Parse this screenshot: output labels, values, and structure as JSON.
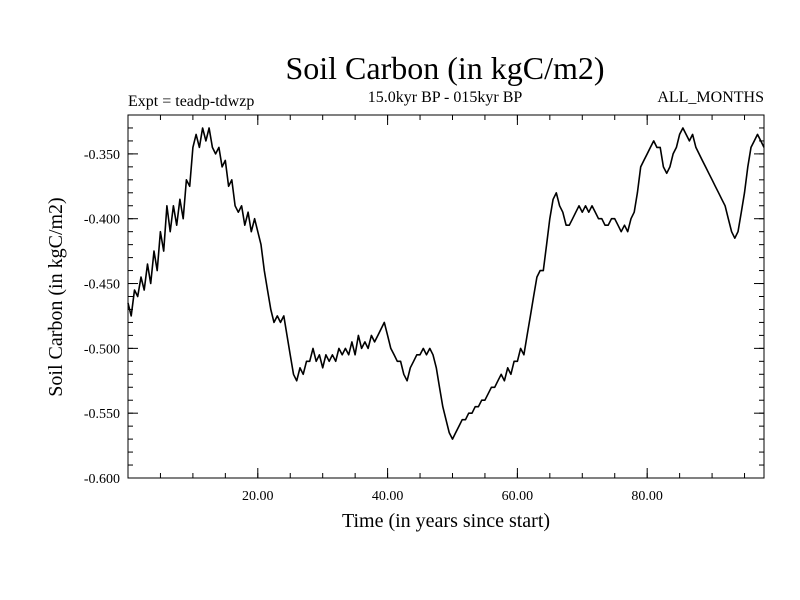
{
  "chart_data": {
    "type": "line",
    "title": "Soil Carbon (in kgC/m2)",
    "subtitle_left": "Expt = teadp-tdwzp",
    "subtitle_center": "15.0kyr BP - 015kyr BP",
    "subtitle_right": "ALL_MONTHS",
    "xlabel": "Time (in years since start)",
    "ylabel": "Soil Carbon (in kgC/m2)",
    "xlim": [
      0,
      98
    ],
    "ylim": [
      -0.6,
      -0.32
    ],
    "x_ticks": [
      20,
      40,
      60,
      80
    ],
    "x_tick_labels": [
      "20.00",
      "40.00",
      "60.00",
      "80.00"
    ],
    "y_ticks": [
      -0.6,
      -0.55,
      -0.5,
      -0.45,
      -0.4,
      -0.35
    ],
    "y_tick_labels": [
      "-0.600",
      "-0.550",
      "-0.500",
      "-0.450",
      "-0.400",
      "-0.350"
    ],
    "grid": false,
    "series": [
      {
        "name": "Soil Carbon",
        "color": "#000000",
        "points": [
          [
            0,
            -0.465
          ],
          [
            0.5,
            -0.475
          ],
          [
            1,
            -0.455
          ],
          [
            1.5,
            -0.46
          ],
          [
            2,
            -0.445
          ],
          [
            2.5,
            -0.455
          ],
          [
            3,
            -0.435
          ],
          [
            3.5,
            -0.45
          ],
          [
            4,
            -0.425
          ],
          [
            4.5,
            -0.44
          ],
          [
            5,
            -0.41
          ],
          [
            5.5,
            -0.425
          ],
          [
            6,
            -0.39
          ],
          [
            6.5,
            -0.41
          ],
          [
            7,
            -0.39
          ],
          [
            7.5,
            -0.405
          ],
          [
            8,
            -0.385
          ],
          [
            8.5,
            -0.4
          ],
          [
            9,
            -0.37
          ],
          [
            9.5,
            -0.375
          ],
          [
            10,
            -0.345
          ],
          [
            10.5,
            -0.335
          ],
          [
            11,
            -0.345
          ],
          [
            11.5,
            -0.33
          ],
          [
            12,
            -0.34
          ],
          [
            12.5,
            -0.33
          ],
          [
            13,
            -0.345
          ],
          [
            13.5,
            -0.35
          ],
          [
            14,
            -0.345
          ],
          [
            14.5,
            -0.36
          ],
          [
            15,
            -0.355
          ],
          [
            15.5,
            -0.375
          ],
          [
            16,
            -0.37
          ],
          [
            16.5,
            -0.39
          ],
          [
            17,
            -0.395
          ],
          [
            17.5,
            -0.39
          ],
          [
            18,
            -0.405
          ],
          [
            18.5,
            -0.395
          ],
          [
            19,
            -0.41
          ],
          [
            19.5,
            -0.4
          ],
          [
            20,
            -0.41
          ],
          [
            20.5,
            -0.42
          ],
          [
            21,
            -0.44
          ],
          [
            21.5,
            -0.455
          ],
          [
            22,
            -0.47
          ],
          [
            22.5,
            -0.48
          ],
          [
            23,
            -0.475
          ],
          [
            23.5,
            -0.48
          ],
          [
            24,
            -0.475
          ],
          [
            24.5,
            -0.49
          ],
          [
            25,
            -0.505
          ],
          [
            25.5,
            -0.52
          ],
          [
            26,
            -0.525
          ],
          [
            26.5,
            -0.515
          ],
          [
            27,
            -0.52
          ],
          [
            27.5,
            -0.51
          ],
          [
            28,
            -0.51
          ],
          [
            28.5,
            -0.5
          ],
          [
            29,
            -0.51
          ],
          [
            29.5,
            -0.505
          ],
          [
            30,
            -0.515
          ],
          [
            30.5,
            -0.505
          ],
          [
            31,
            -0.51
          ],
          [
            31.5,
            -0.505
          ],
          [
            32,
            -0.51
          ],
          [
            32.5,
            -0.5
          ],
          [
            33,
            -0.505
          ],
          [
            33.5,
            -0.5
          ],
          [
            34,
            -0.505
          ],
          [
            34.5,
            -0.495
          ],
          [
            35,
            -0.505
          ],
          [
            35.5,
            -0.49
          ],
          [
            36,
            -0.5
          ],
          [
            36.5,
            -0.495
          ],
          [
            37,
            -0.5
          ],
          [
            37.5,
            -0.49
          ],
          [
            38,
            -0.495
          ],
          [
            38.5,
            -0.49
          ],
          [
            39,
            -0.485
          ],
          [
            39.5,
            -0.48
          ],
          [
            40,
            -0.49
          ],
          [
            40.5,
            -0.5
          ],
          [
            41,
            -0.505
          ],
          [
            41.5,
            -0.51
          ],
          [
            42,
            -0.51
          ],
          [
            42.5,
            -0.52
          ],
          [
            43,
            -0.525
          ],
          [
            43.5,
            -0.515
          ],
          [
            44,
            -0.51
          ],
          [
            44.5,
            -0.505
          ],
          [
            45,
            -0.505
          ],
          [
            45.5,
            -0.5
          ],
          [
            46,
            -0.505
          ],
          [
            46.5,
            -0.5
          ],
          [
            47,
            -0.505
          ],
          [
            47.5,
            -0.515
          ],
          [
            48,
            -0.53
          ],
          [
            48.5,
            -0.545
          ],
          [
            49,
            -0.555
          ],
          [
            49.5,
            -0.565
          ],
          [
            50,
            -0.57
          ],
          [
            50.5,
            -0.565
          ],
          [
            51,
            -0.56
          ],
          [
            51.5,
            -0.555
          ],
          [
            52,
            -0.555
          ],
          [
            52.5,
            -0.55
          ],
          [
            53,
            -0.55
          ],
          [
            53.5,
            -0.545
          ],
          [
            54,
            -0.545
          ],
          [
            54.5,
            -0.54
          ],
          [
            55,
            -0.54
          ],
          [
            55.5,
            -0.535
          ],
          [
            56,
            -0.53
          ],
          [
            56.5,
            -0.53
          ],
          [
            57,
            -0.525
          ],
          [
            57.5,
            -0.52
          ],
          [
            58,
            -0.525
          ],
          [
            58.5,
            -0.515
          ],
          [
            59,
            -0.52
          ],
          [
            59.5,
            -0.51
          ],
          [
            60,
            -0.51
          ],
          [
            60.5,
            -0.5
          ],
          [
            61,
            -0.505
          ],
          [
            61.5,
            -0.49
          ],
          [
            62,
            -0.475
          ],
          [
            62.5,
            -0.46
          ],
          [
            63,
            -0.445
          ],
          [
            63.5,
            -0.44
          ],
          [
            64,
            -0.44
          ],
          [
            64.5,
            -0.42
          ],
          [
            65,
            -0.4
          ],
          [
            65.5,
            -0.385
          ],
          [
            66,
            -0.38
          ],
          [
            66.5,
            -0.39
          ],
          [
            67,
            -0.395
          ],
          [
            67.5,
            -0.405
          ],
          [
            68,
            -0.405
          ],
          [
            68.5,
            -0.4
          ],
          [
            69,
            -0.395
          ],
          [
            69.5,
            -0.39
          ],
          [
            70,
            -0.395
          ],
          [
            70.5,
            -0.39
          ],
          [
            71,
            -0.395
          ],
          [
            71.5,
            -0.39
          ],
          [
            72,
            -0.395
          ],
          [
            72.5,
            -0.4
          ],
          [
            73,
            -0.4
          ],
          [
            73.5,
            -0.405
          ],
          [
            74,
            -0.405
          ],
          [
            74.5,
            -0.4
          ],
          [
            75,
            -0.4
          ],
          [
            75.5,
            -0.405
          ],
          [
            76,
            -0.41
          ],
          [
            76.5,
            -0.405
          ],
          [
            77,
            -0.41
          ],
          [
            77.5,
            -0.4
          ],
          [
            78,
            -0.395
          ],
          [
            78.5,
            -0.38
          ],
          [
            79,
            -0.36
          ],
          [
            79.5,
            -0.355
          ],
          [
            80,
            -0.35
          ],
          [
            80.5,
            -0.345
          ],
          [
            81,
            -0.34
          ],
          [
            81.5,
            -0.345
          ],
          [
            82,
            -0.345
          ],
          [
            82.5,
            -0.36
          ],
          [
            83,
            -0.365
          ],
          [
            83.5,
            -0.36
          ],
          [
            84,
            -0.35
          ],
          [
            84.5,
            -0.345
          ],
          [
            85,
            -0.335
          ],
          [
            85.5,
            -0.33
          ],
          [
            86,
            -0.335
          ],
          [
            86.5,
            -0.34
          ],
          [
            87,
            -0.335
          ],
          [
            87.5,
            -0.345
          ],
          [
            88,
            -0.35
          ],
          [
            88.5,
            -0.355
          ],
          [
            89,
            -0.36
          ],
          [
            89.5,
            -0.365
          ],
          [
            90,
            -0.37
          ],
          [
            90.5,
            -0.375
          ],
          [
            91,
            -0.38
          ],
          [
            91.5,
            -0.385
          ],
          [
            92,
            -0.39
          ],
          [
            92.5,
            -0.4
          ],
          [
            93,
            -0.41
          ],
          [
            93.5,
            -0.415
          ],
          [
            94,
            -0.41
          ],
          [
            94.5,
            -0.395
          ],
          [
            95,
            -0.38
          ],
          [
            95.5,
            -0.36
          ],
          [
            96,
            -0.345
          ],
          [
            96.5,
            -0.34
          ],
          [
            97,
            -0.335
          ],
          [
            97.5,
            -0.34
          ],
          [
            98,
            -0.345
          ]
        ]
      }
    ]
  }
}
